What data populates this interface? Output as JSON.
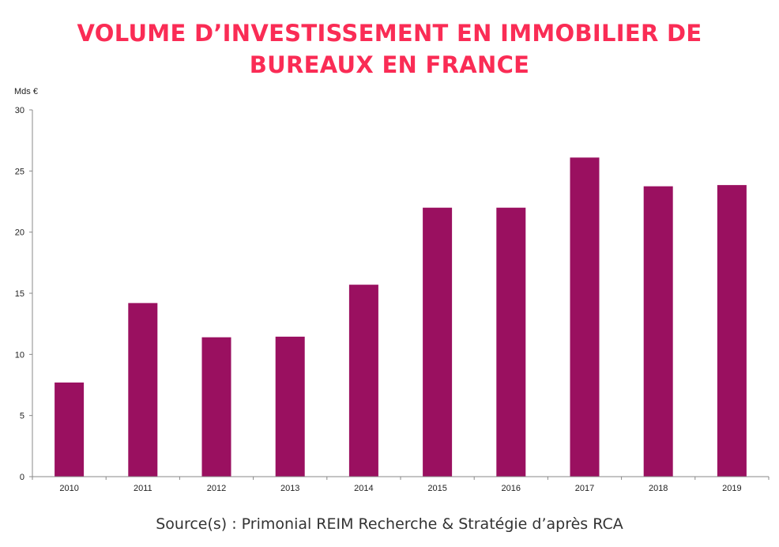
{
  "title_lines": [
    "VOLUME D’INVESTISSEMENT EN IMMOBILIER DE",
    "BUREAUX EN FRANCE"
  ],
  "source": "Source(s) : Primonial REIM Recherche & Stratégie d’après RCA",
  "colors": {
    "title": "#fa2c55",
    "bar": "#9a1060",
    "axis": "#888888"
  },
  "chart_data": {
    "type": "bar",
    "title": "VOLUME D’INVESTISSEMENT EN IMMOBILIER DE BUREAUX EN FRANCE",
    "ylabel": "Mds €",
    "xlabel": "",
    "ylim": [
      0,
      30
    ],
    "yticks": [
      0,
      5,
      10,
      15,
      20,
      25,
      30
    ],
    "categories": [
      "2010",
      "2011",
      "2012",
      "2013",
      "2014",
      "2015",
      "2016",
      "2017",
      "2018",
      "2019"
    ],
    "values": [
      7.7,
      14.2,
      11.4,
      11.45,
      15.7,
      22.0,
      22.0,
      26.1,
      23.75,
      23.85
    ],
    "grid": false,
    "legend": "none"
  }
}
